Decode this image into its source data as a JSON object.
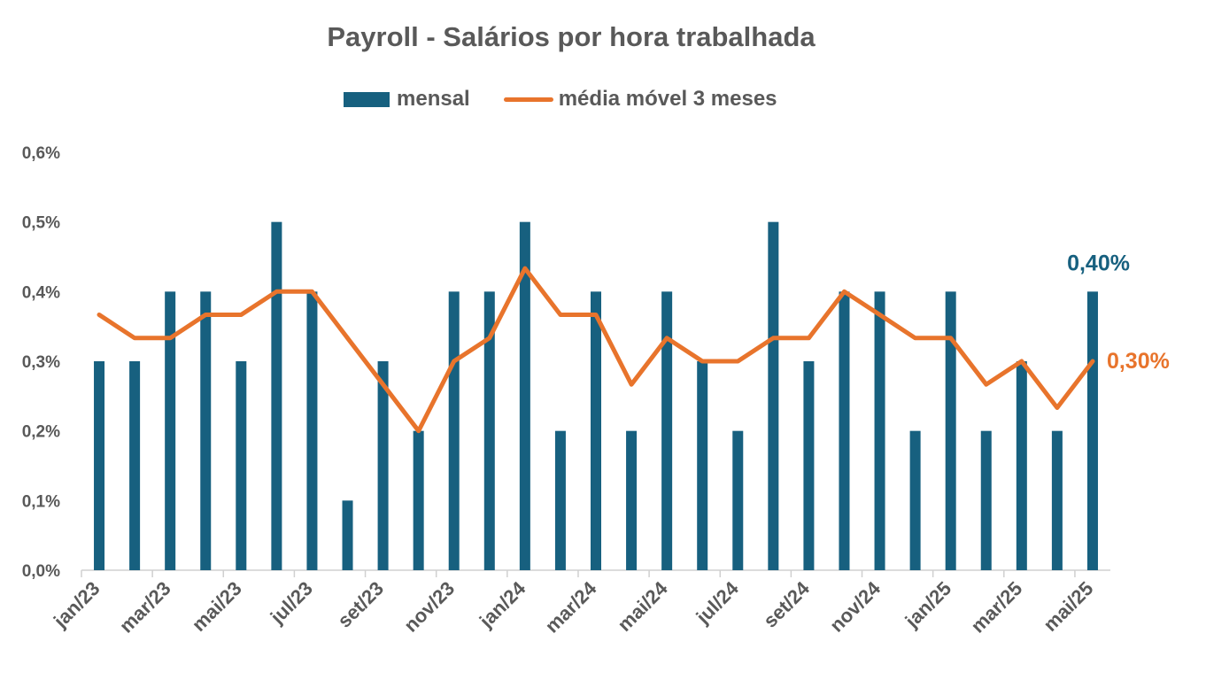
{
  "chart_data": {
    "type": "bar",
    "title": "Payroll - Salários por hora trabalhada",
    "months": [
      "jan/23",
      "fev/23",
      "mar/23",
      "abr/23",
      "mai/23",
      "jun/23",
      "jul/23",
      "ago/23",
      "set/23",
      "out/23",
      "nov/23",
      "dez/23",
      "jan/24",
      "fev/24",
      "mar/24",
      "abr/24",
      "mai/24",
      "jun/24",
      "jul/24",
      "ago/24",
      "set/24",
      "out/24",
      "nov/24",
      "dez/24",
      "jan/25",
      "fev/25",
      "mar/25",
      "abr/25",
      "mai/25"
    ],
    "x_tick_labels": [
      "jan/23",
      "mar/23",
      "mai/23",
      "jul/23",
      "set/23",
      "nov/23",
      "jan/24",
      "mar/24",
      "mai/24",
      "jul/24",
      "set/24",
      "nov/24",
      "jan/25",
      "mar/25",
      "mai/25"
    ],
    "y_tick_labels": [
      "0,0%",
      "0,1%",
      "0,2%",
      "0,3%",
      "0,4%",
      "0,5%",
      "0,6%"
    ],
    "ylim": [
      0,
      0.6
    ],
    "legend_position": "top",
    "series": [
      {
        "name": "mensal",
        "type": "bar",
        "color": "#17607f",
        "values": [
          0.3,
          0.3,
          0.4,
          0.4,
          0.3,
          0.5,
          0.4,
          0.1,
          0.3,
          0.2,
          0.4,
          0.4,
          0.5,
          0.2,
          0.4,
          0.2,
          0.4,
          0.3,
          0.2,
          0.5,
          0.3,
          0.4,
          0.4,
          0.2,
          0.4,
          0.2,
          0.3,
          0.2,
          0.4
        ],
        "end_label": "0,40%"
      },
      {
        "name": "média móvel 3 meses",
        "type": "line",
        "color": "#e8742c",
        "values": [
          0.3667,
          0.3333,
          0.3333,
          0.3667,
          0.3667,
          0.4,
          0.4,
          0.3333,
          0.2667,
          0.2,
          0.3,
          0.3333,
          0.4333,
          0.3667,
          0.3667,
          0.2667,
          0.3333,
          0.3,
          0.3,
          0.3333,
          0.3333,
          0.4,
          0.3667,
          0.3333,
          0.3333,
          0.2667,
          0.3,
          0.2333,
          0.3
        ],
        "end_label": "0,30%"
      }
    ]
  }
}
